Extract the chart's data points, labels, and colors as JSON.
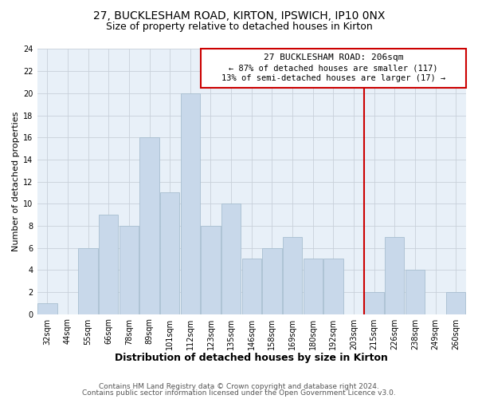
{
  "title": "27, BUCKLESHAM ROAD, KIRTON, IPSWICH, IP10 0NX",
  "subtitle": "Size of property relative to detached houses in Kirton",
  "xlabel": "Distribution of detached houses by size in Kirton",
  "ylabel": "Number of detached properties",
  "bar_labels": [
    "32sqm",
    "44sqm",
    "55sqm",
    "66sqm",
    "78sqm",
    "89sqm",
    "101sqm",
    "112sqm",
    "123sqm",
    "135sqm",
    "146sqm",
    "158sqm",
    "169sqm",
    "180sqm",
    "192sqm",
    "203sqm",
    "215sqm",
    "226sqm",
    "238sqm",
    "249sqm",
    "260sqm"
  ],
  "bar_values": [
    1,
    0,
    6,
    9,
    8,
    16,
    11,
    20,
    8,
    10,
    5,
    6,
    7,
    5,
    5,
    0,
    2,
    7,
    4,
    0,
    2
  ],
  "bar_color": "#c8d8ea",
  "bar_edge_color": "#a8bfd0",
  "vline_color": "#cc0000",
  "annotation_title": "27 BUCKLESHAM ROAD: 206sqm",
  "annotation_line1": "← 87% of detached houses are smaller (117)",
  "annotation_line2": "13% of semi-detached houses are larger (17) →",
  "annotation_box_color": "#ffffff",
  "annotation_box_edge": "#cc0000",
  "ylim": [
    0,
    24
  ],
  "yticks": [
    0,
    2,
    4,
    6,
    8,
    10,
    12,
    14,
    16,
    18,
    20,
    22,
    24
  ],
  "footer1": "Contains HM Land Registry data © Crown copyright and database right 2024.",
  "footer2": "Contains public sector information licensed under the Open Government Licence v3.0.",
  "bg_color": "#ffffff",
  "plot_bg_color": "#e8f0f8",
  "grid_color": "#c8d0da",
  "title_fontsize": 10,
  "subtitle_fontsize": 9,
  "xlabel_fontsize": 9,
  "ylabel_fontsize": 8,
  "tick_fontsize": 7,
  "annotation_title_fontsize": 8,
  "annotation_text_fontsize": 7.5,
  "footer_fontsize": 6.5
}
